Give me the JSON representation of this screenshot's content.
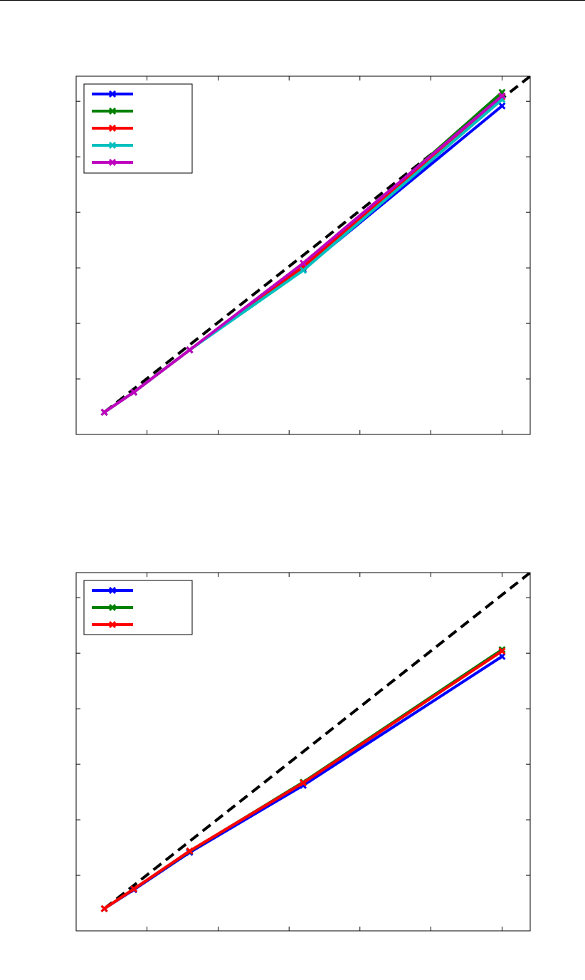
{
  "page": {
    "header_rule": true
  },
  "chart_data": [
    {
      "type": "line",
      "title": "",
      "xlabel": "",
      "ylabel": "",
      "xlim": [
        0,
        1
      ],
      "ylim": [
        0,
        1
      ],
      "grid": false,
      "legend_position": "top-left",
      "legend_entries": [
        "",
        "",
        "",
        "",
        ""
      ],
      "reference_line": {
        "style": "dashed",
        "color": "#000000",
        "x": [
          0.062,
          1.0
        ],
        "y": [
          0.062,
          1.0
        ]
      },
      "series": [
        {
          "color": "#0000ff",
          "x": [
            0.062,
            0.127,
            0.25,
            0.5,
            0.938
          ],
          "y": [
            0.062,
            0.118,
            0.236,
            0.461,
            0.917
          ]
        },
        {
          "color": "#008000",
          "x": [
            0.062,
            0.127,
            0.25,
            0.5,
            0.938
          ],
          "y": [
            0.062,
            0.118,
            0.236,
            0.466,
            0.955
          ]
        },
        {
          "color": "#ff0000",
          "x": [
            0.062,
            0.127,
            0.25,
            0.5,
            0.938
          ],
          "y": [
            0.062,
            0.118,
            0.236,
            0.468,
            0.943
          ]
        },
        {
          "color": "#00bfbf",
          "x": [
            0.062,
            0.127,
            0.25,
            0.5,
            0.938
          ],
          "y": [
            0.062,
            0.118,
            0.236,
            0.458,
            0.935
          ]
        },
        {
          "color": "#bf00bf",
          "x": [
            0.062,
            0.127,
            0.25,
            0.5,
            0.938
          ],
          "y": [
            0.062,
            0.118,
            0.236,
            0.478,
            0.945
          ]
        }
      ],
      "xticks": [
        0.156,
        0.313,
        0.469,
        0.625,
        0.781,
        0.938
      ],
      "yticks": [
        0.155,
        0.31,
        0.465,
        0.62,
        0.775,
        0.93
      ]
    },
    {
      "type": "line",
      "title": "",
      "xlabel": "",
      "ylabel": "",
      "xlim": [
        0,
        1
      ],
      "ylim": [
        0,
        1
      ],
      "grid": false,
      "legend_position": "top-left",
      "legend_entries": [
        "",
        "",
        ""
      ],
      "reference_line": {
        "style": "dashed",
        "color": "#000000",
        "x": [
          0.062,
          1.0
        ],
        "y": [
          0.062,
          1.0
        ]
      },
      "series": [
        {
          "color": "#0000ff",
          "x": [
            0.062,
            0.127,
            0.25,
            0.5,
            0.938
          ],
          "y": [
            0.062,
            0.115,
            0.219,
            0.406,
            0.766
          ]
        },
        {
          "color": "#008000",
          "x": [
            0.062,
            0.127,
            0.25,
            0.5,
            0.938
          ],
          "y": [
            0.062,
            0.117,
            0.222,
            0.415,
            0.785
          ]
        },
        {
          "color": "#ff0000",
          "x": [
            0.062,
            0.127,
            0.25,
            0.5,
            0.938
          ],
          "y": [
            0.062,
            0.117,
            0.223,
            0.413,
            0.781
          ]
        }
      ],
      "xticks": [
        0.156,
        0.313,
        0.469,
        0.625,
        0.781,
        0.938
      ],
      "yticks": [
        0.155,
        0.31,
        0.465,
        0.62,
        0.775,
        0.93
      ]
    }
  ]
}
